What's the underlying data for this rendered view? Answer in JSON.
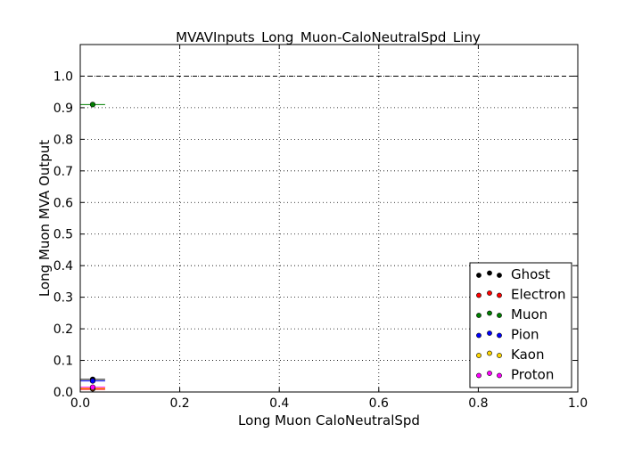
{
  "chart_data": {
    "type": "scatter",
    "title": "MVAVInputs_Long_Muon-CaloNeutralSpd_Liny",
    "xlabel": "Long Muon CaloNeutralSpd",
    "ylabel": "Long Muon MVA Output",
    "xlim": [
      0.0,
      1.0
    ],
    "ylim": [
      0.0,
      1.1
    ],
    "xticks": [
      "0.0",
      "0.2",
      "0.4",
      "0.6",
      "0.8",
      "1.0"
    ],
    "yticks": [
      "0.0",
      "0.1",
      "0.2",
      "0.3",
      "0.4",
      "0.5",
      "0.6",
      "0.7",
      "0.8",
      "0.9",
      "1.0"
    ],
    "grid": true,
    "reference_line_y": 1.0,
    "legend_position": "lower-right",
    "series": [
      {
        "name": "Ghost",
        "color": "#000000",
        "x": [
          0.025
        ],
        "y": [
          0.04
        ],
        "xerr": [
          0.025
        ]
      },
      {
        "name": "Electron",
        "color": "#ff0000",
        "x": [
          0.025
        ],
        "y": [
          0.01
        ],
        "xerr": [
          0.025
        ]
      },
      {
        "name": "Muon",
        "color": "#008000",
        "x": [
          0.025
        ],
        "y": [
          0.91
        ],
        "xerr": [
          0.025
        ]
      },
      {
        "name": "Pion",
        "color": "#0000ff",
        "x": [
          0.025
        ],
        "y": [
          0.035
        ],
        "xerr": [
          0.025
        ]
      },
      {
        "name": "Kaon",
        "color": "#ffd700",
        "x": [
          0.025
        ],
        "y": [
          0.012
        ],
        "xerr": [
          0.025
        ]
      },
      {
        "name": "Proton",
        "color": "#ff00ff",
        "x": [
          0.025
        ],
        "y": [
          0.015
        ],
        "xerr": [
          0.025
        ]
      }
    ]
  }
}
